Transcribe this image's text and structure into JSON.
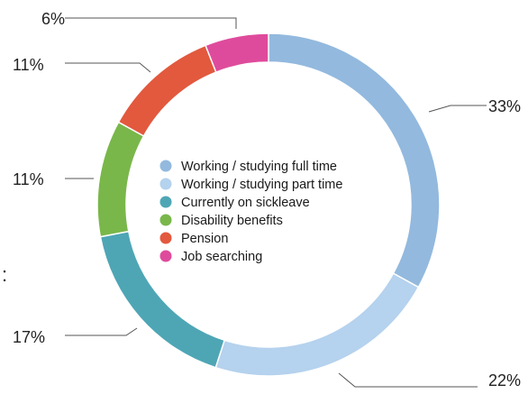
{
  "chart_data": {
    "type": "pie",
    "donut": true,
    "legend_position": "center",
    "categories": [
      "Working / studying full time",
      "Working / studying part time",
      "Currently on sickleave",
      "Disability benefits",
      "Pension",
      "Job searching"
    ],
    "values": [
      33,
      22,
      17,
      11,
      11,
      6
    ],
    "labels": [
      "33%",
      "22%",
      "17%",
      "11%",
      "11%",
      "6%"
    ],
    "colors": [
      "#93b9de",
      "#b5d2ee",
      "#4ea6b5",
      "#79b74a",
      "#e2593e",
      "#df4b9c"
    ]
  },
  "edge_text": ":"
}
